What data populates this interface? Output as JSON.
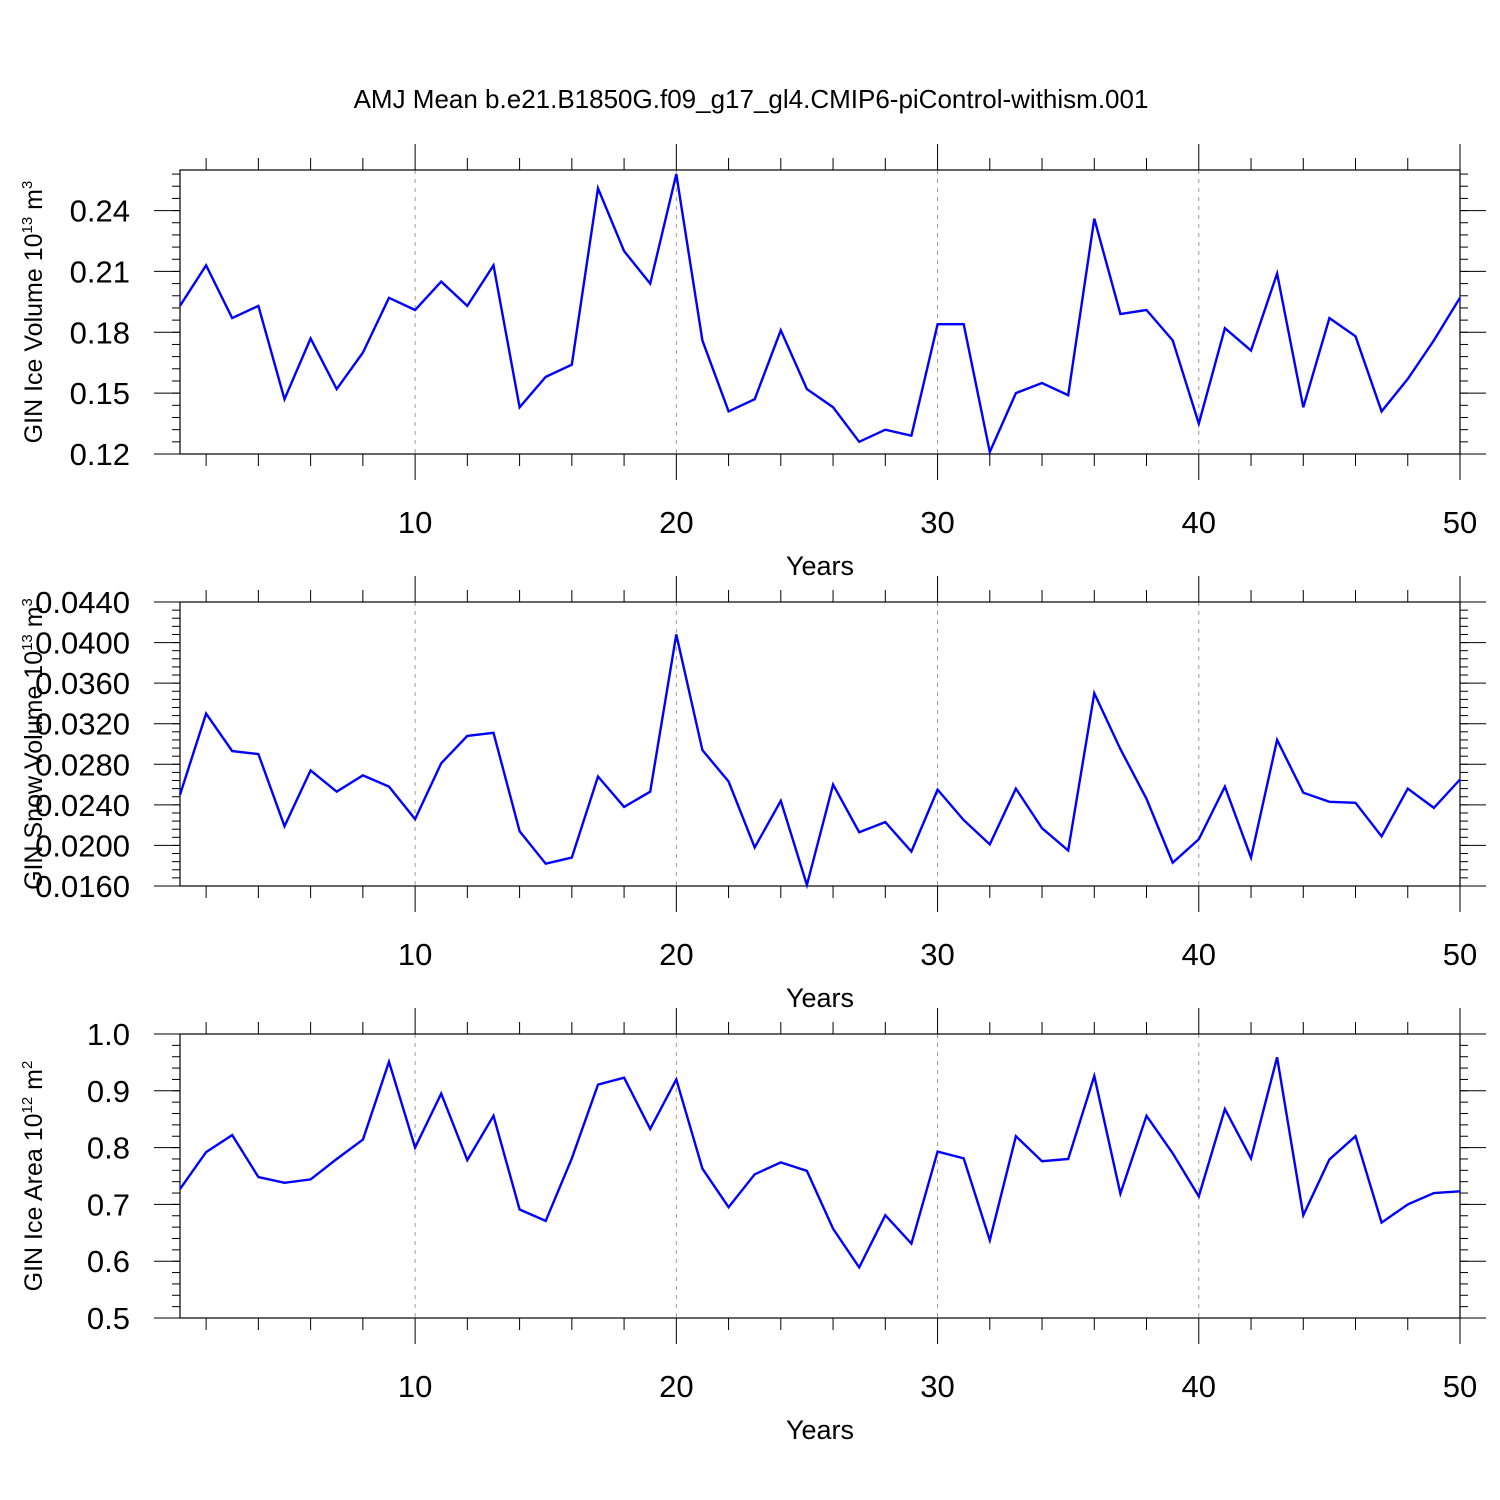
{
  "title": "AMJ Mean b.e21.B1850G.f09_g17_gl4.CMIP6-piControl-withism.001",
  "colors": {
    "line": "#0000ff",
    "axis": "#000000",
    "grid": "#999999"
  },
  "chart_data": [
    {
      "type": "line",
      "xlabel": "Years",
      "ylabel": "GIN Ice Volume 10",
      "ylabel_exp": "13",
      "ylabel_unit": " m",
      "ylabel_unit_exp": "3",
      "xlim": [
        1,
        50
      ],
      "ylim": [
        0.12,
        0.26
      ],
      "x_ticks": [
        10,
        20,
        30,
        40,
        50
      ],
      "x_tick_labels": [
        "10",
        "20",
        "30",
        "40",
        "50"
      ],
      "y_ticks": [
        0.12,
        0.15,
        0.18,
        0.21,
        0.24
      ],
      "y_tick_labels": [
        "0.12",
        "0.15",
        "0.18",
        "0.21",
        "0.24"
      ],
      "y_minor_step": 0.006,
      "grid_x": [
        10,
        20,
        30,
        40
      ],
      "series": [
        {
          "x": [
            1,
            2,
            3,
            4,
            5,
            6,
            7,
            8,
            9,
            10,
            11,
            12,
            13,
            14,
            15,
            16,
            17,
            18,
            19,
            20,
            21,
            22,
            23,
            24,
            25,
            26,
            27,
            28,
            29,
            30,
            31,
            32,
            33,
            34,
            35,
            36,
            37,
            38,
            39,
            40,
            41,
            42,
            43,
            44,
            45,
            46,
            47,
            48,
            49,
            50
          ],
          "values": [
            0.193,
            0.213,
            0.187,
            0.193,
            0.147,
            0.177,
            0.152,
            0.17,
            0.197,
            0.191,
            0.205,
            0.193,
            0.213,
            0.143,
            0.158,
            0.164,
            0.251,
            0.22,
            0.204,
            0.258,
            0.176,
            0.141,
            0.147,
            0.181,
            0.152,
            0.143,
            0.126,
            0.132,
            0.129,
            0.184,
            0.184,
            0.121,
            0.15,
            0.155,
            0.149,
            0.236,
            0.189,
            0.191,
            0.176,
            0.135,
            0.182,
            0.171,
            0.209,
            0.143,
            0.187,
            0.178,
            0.141,
            0.157,
            0.176,
            0.197
          ]
        }
      ]
    },
    {
      "type": "line",
      "xlabel": "Years",
      "ylabel": "GIN Snow Volume 10",
      "ylabel_exp": "13",
      "ylabel_unit": " m",
      "ylabel_unit_exp": "3",
      "xlim": [
        1,
        50
      ],
      "ylim": [
        0.016,
        0.044
      ],
      "x_ticks": [
        10,
        20,
        30,
        40,
        50
      ],
      "x_tick_labels": [
        "10",
        "20",
        "30",
        "40",
        "50"
      ],
      "y_ticks": [
        0.016,
        0.02,
        0.024,
        0.028,
        0.032,
        0.036,
        0.04,
        0.044
      ],
      "y_tick_labels": [
        "0.0160",
        "0.0200",
        "0.0240",
        "0.0280",
        "0.0320",
        "0.0360",
        "0.0400",
        "0.0440"
      ],
      "y_minor_step": 0.0008,
      "grid_x": [
        10,
        20,
        30,
        40
      ],
      "series": [
        {
          "x": [
            1,
            2,
            3,
            4,
            5,
            6,
            7,
            8,
            9,
            10,
            11,
            12,
            13,
            14,
            15,
            16,
            17,
            18,
            19,
            20,
            21,
            22,
            23,
            24,
            25,
            26,
            27,
            28,
            29,
            30,
            31,
            32,
            33,
            34,
            35,
            36,
            37,
            38,
            39,
            40,
            41,
            42,
            43,
            44,
            45,
            46,
            47,
            48,
            49,
            50
          ],
          "values": [
            0.025,
            0.033,
            0.0293,
            0.029,
            0.0219,
            0.0274,
            0.0253,
            0.0269,
            0.0258,
            0.0226,
            0.0281,
            0.0308,
            0.0311,
            0.0214,
            0.0182,
            0.0188,
            0.0268,
            0.0238,
            0.0253,
            0.0408,
            0.0294,
            0.0263,
            0.0198,
            0.0244,
            0.0161,
            0.026,
            0.0213,
            0.0223,
            0.0194,
            0.0255,
            0.0225,
            0.0201,
            0.0256,
            0.0217,
            0.0195,
            0.035,
            0.0295,
            0.0246,
            0.0183,
            0.0206,
            0.0258,
            0.0188,
            0.0304,
            0.0252,
            0.0243,
            0.0242,
            0.0209,
            0.0256,
            0.0237,
            0.0265
          ]
        }
      ]
    },
    {
      "type": "line",
      "xlabel": "Years",
      "ylabel": "GIN Ice Area 10",
      "ylabel_exp": "12",
      "ylabel_unit": " m",
      "ylabel_unit_exp": "2",
      "xlim": [
        1,
        50
      ],
      "ylim": [
        0.5,
        1.0
      ],
      "x_ticks": [
        10,
        20,
        30,
        40,
        50
      ],
      "x_tick_labels": [
        "10",
        "20",
        "30",
        "40",
        "50"
      ],
      "y_ticks": [
        0.5,
        0.6,
        0.7,
        0.8,
        0.9,
        1.0
      ],
      "y_tick_labels": [
        "0.5",
        "0.6",
        "0.7",
        "0.8",
        "0.9",
        "1.0"
      ],
      "y_minor_step": 0.02,
      "grid_x": [
        10,
        20,
        30,
        40
      ],
      "series": [
        {
          "x": [
            1,
            2,
            3,
            4,
            5,
            6,
            7,
            8,
            9,
            10,
            11,
            12,
            13,
            14,
            15,
            16,
            17,
            18,
            19,
            20,
            21,
            22,
            23,
            24,
            25,
            26,
            27,
            28,
            29,
            30,
            31,
            32,
            33,
            34,
            35,
            36,
            37,
            38,
            39,
            40,
            41,
            42,
            43,
            44,
            45,
            46,
            47,
            48,
            49,
            50
          ],
          "values": [
            0.727,
            0.792,
            0.822,
            0.748,
            0.738,
            0.744,
            0.78,
            0.814,
            0.951,
            0.8,
            0.895,
            0.778,
            0.856,
            0.691,
            0.671,
            0.781,
            0.911,
            0.923,
            0.833,
            0.92,
            0.763,
            0.695,
            0.753,
            0.774,
            0.759,
            0.657,
            0.589,
            0.681,
            0.631,
            0.793,
            0.781,
            0.637,
            0.82,
            0.776,
            0.78,
            0.926,
            0.719,
            0.856,
            0.79,
            0.714,
            0.868,
            0.781,
            0.959,
            0.681,
            0.779,
            0.82,
            0.668,
            0.7,
            0.72,
            0.723
          ]
        }
      ]
    }
  ]
}
